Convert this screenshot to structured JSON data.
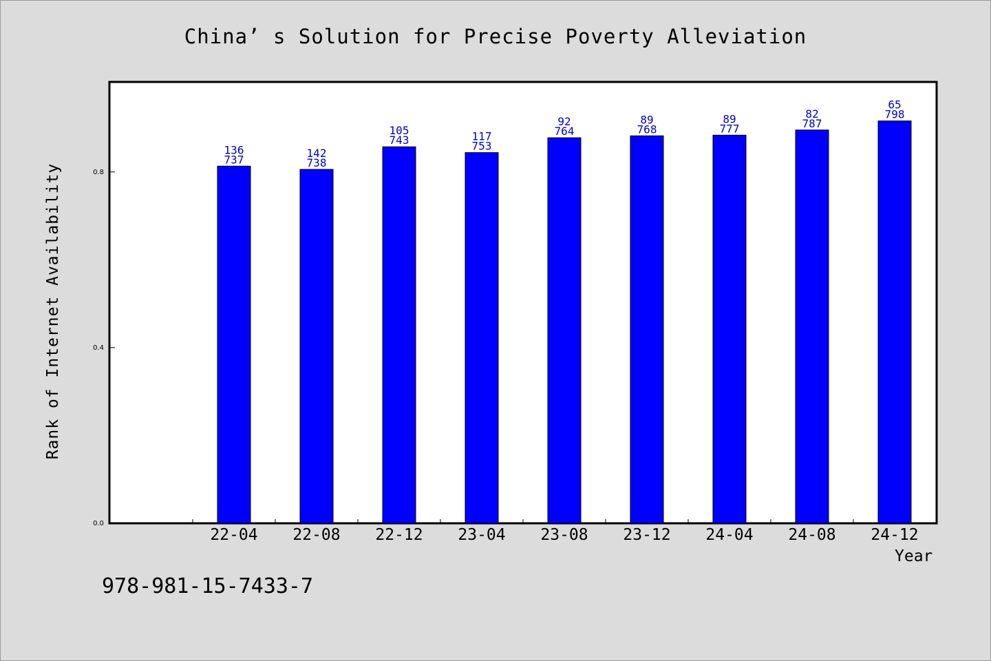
{
  "chart_data": {
    "type": "bar",
    "title": "China’ s Solution for Precise Poverty Alleviation",
    "xlabel": "Year",
    "ylabel": "Rank of Internet Availability",
    "categories": [
      "22-04",
      "22-08",
      "22-12",
      "23-04",
      "23-08",
      "23-12",
      "24-04",
      "24-08",
      "24-12"
    ],
    "values": [
      0.8133,
      0.8059,
      0.8573,
      0.8441,
      0.8779,
      0.8823,
      0.8838,
      0.8956,
      0.9162
    ],
    "data_labels": [
      [
        "136",
        "737"
      ],
      [
        "142",
        "738"
      ],
      [
        "105",
        "743"
      ],
      [
        "117",
        "753"
      ],
      [
        "92",
        "764"
      ],
      [
        "89",
        "768"
      ],
      [
        "89",
        "777"
      ],
      [
        "82",
        "787"
      ],
      [
        "65",
        "798"
      ]
    ],
    "yticks": [
      "0.0",
      "0.4",
      "0.8"
    ],
    "ytick_values": [
      0,
      0.4,
      0.8
    ],
    "ylim": [
      0,
      1.005
    ],
    "bar_color": "#0000ff",
    "label_color": "#0000cc",
    "grid": false,
    "legend": "none"
  },
  "footer": {
    "isbn": "978-981-15-7433-7"
  }
}
